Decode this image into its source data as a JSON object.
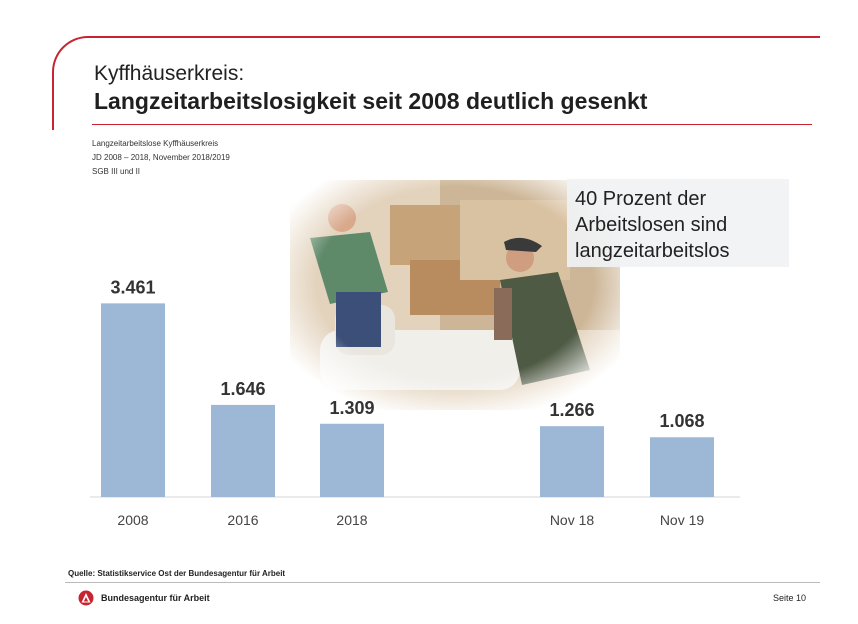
{
  "header": {
    "sup_title": "Kyffhäuserkreis:",
    "title": "Langzeitarbeitslosigkeit seit 2008 deutlich gesenkt",
    "subtitle_lines": [
      "Langzeitarbeitslose Kyffhäuserkreis",
      "JD 2008 – 2018, November 2018/2019",
      "SGB III und II"
    ]
  },
  "callout": {
    "lines": [
      "40 Prozent der",
      "Arbeitslosen sind",
      "langzeitarbeitslos"
    ]
  },
  "chart_data": {
    "type": "bar",
    "categories": [
      "2008",
      "2016",
      "2018",
      "Nov 18",
      "Nov 19"
    ],
    "values": [
      3461,
      1646,
      1309,
      1266,
      1068
    ],
    "value_labels": [
      "3.461",
      "1.646",
      "1.309",
      "1.266",
      "1.068"
    ],
    "bar_color": "#9db7d6",
    "label_color": "#333333",
    "gap_after_index": 2,
    "ylim": [
      0,
      3700
    ],
    "grid": false,
    "legend": "none",
    "xlabel": "",
    "ylabel": ""
  },
  "footer": {
    "source": "Quelle: Statistikservice Ost der Bundesagentur für Arbeit",
    "organization": "Bundesagentur für Arbeit",
    "page": "Seite 10"
  },
  "colors": {
    "accent_red": "#c8242f"
  },
  "image": {
    "subject": "two workers carrying an armchair in a moving van"
  }
}
